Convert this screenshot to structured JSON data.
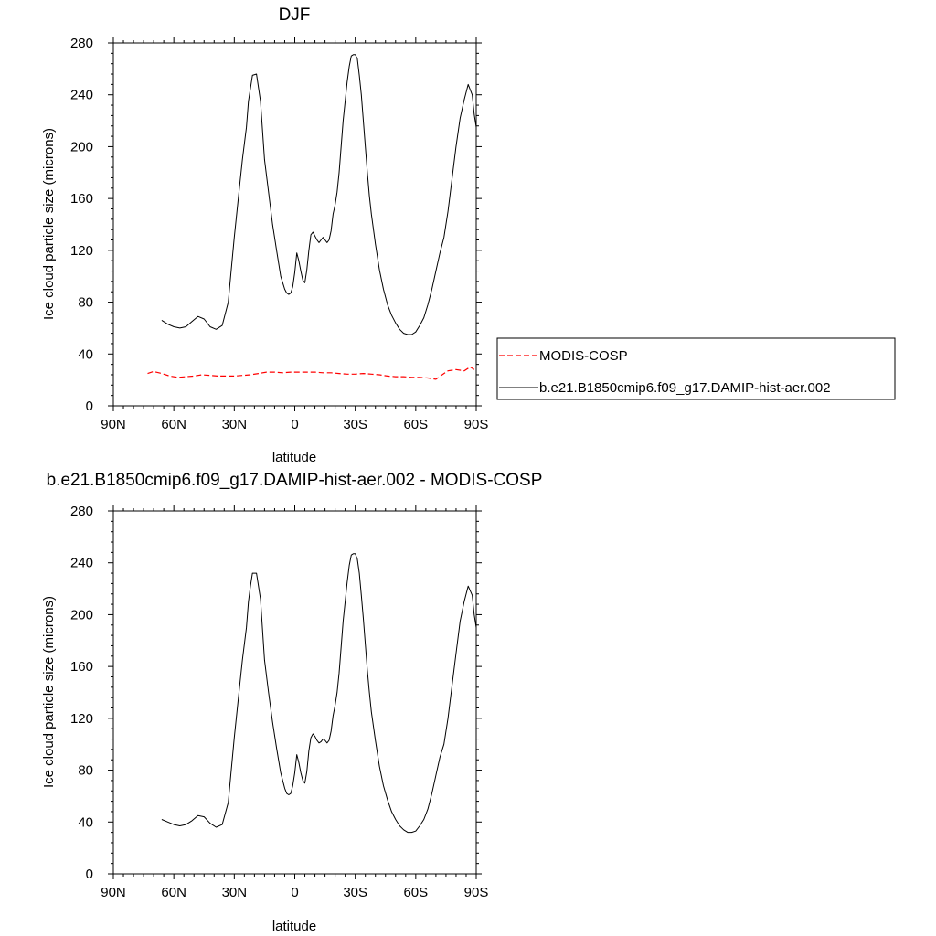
{
  "chart_data": [
    {
      "type": "line",
      "title": "DJF",
      "xlabel": "latitude",
      "ylabel": "Ice cloud particle size (microns)",
      "xlim": [
        -90,
        90
      ],
      "ylim": [
        0,
        280
      ],
      "xticks": [
        -90,
        -60,
        -30,
        0,
        30,
        60,
        90
      ],
      "xticklabels": [
        "90N",
        "60N",
        "30N",
        "0",
        "30S",
        "60S",
        "90S"
      ],
      "yticks": [
        0,
        40,
        80,
        120,
        160,
        200,
        240,
        280
      ],
      "yticklabels": [
        "0",
        "40",
        "80",
        "120",
        "160",
        "200",
        "240",
        "280"
      ],
      "legend": {
        "position": "right",
        "entries": [
          {
            "label": "MODIS-COSP",
            "color": "#ff0000",
            "dash": "dashed"
          },
          {
            "label": "b.e21.B1850cmip6.f09_g17.DAMIP-hist-aer.002",
            "color": "#000000",
            "dash": "solid"
          }
        ]
      },
      "series": [
        {
          "name": "MODIS-COSP",
          "color": "#ff0000",
          "dash": "dashed",
          "x": [
            -73,
            -70,
            -66,
            -62,
            -58,
            -54,
            -50,
            -46,
            -42,
            -38,
            -34,
            -30,
            -26,
            -22,
            -18,
            -14,
            -10,
            -6,
            -2,
            2,
            6,
            10,
            14,
            18,
            22,
            26,
            30,
            34,
            38,
            42,
            46,
            50,
            54,
            58,
            62,
            66,
            70,
            74,
            76,
            80,
            84,
            87,
            89
          ],
          "y": [
            25,
            26.5,
            25,
            23,
            22,
            22.5,
            23,
            24,
            23.5,
            23,
            23,
            23,
            23.5,
            24,
            25,
            26,
            26,
            25.5,
            26,
            26,
            26,
            26,
            25.5,
            25.5,
            25,
            24.5,
            24.5,
            25,
            24.5,
            24,
            23,
            22.5,
            22.5,
            22,
            22,
            21.5,
            20.5,
            25,
            27,
            28,
            27,
            30,
            28
          ]
        },
        {
          "name": "b.e21.B1850cmip6.f09_g17.DAMIP-hist-aer.002",
          "color": "#000000",
          "dash": "solid",
          "x": [
            -66,
            -63,
            -60,
            -57,
            -54,
            -51,
            -48,
            -45,
            -42,
            -39,
            -36,
            -33,
            -30,
            -28,
            -26,
            -24,
            -23,
            -22,
            -21,
            -19,
            -17,
            -15,
            -13,
            -11,
            -9,
            -7,
            -5,
            -4,
            -3,
            -2,
            -1,
            0,
            1,
            2,
            3,
            4,
            5,
            6,
            7,
            8,
            9,
            10,
            11,
            12,
            13,
            14,
            15,
            16,
            17,
            18,
            19,
            20,
            21,
            22,
            23,
            24,
            25,
            26,
            27,
            28,
            29,
            30,
            31,
            32,
            33,
            34,
            35,
            36,
            37,
            38,
            40,
            42,
            44,
            46,
            48,
            50,
            52,
            54,
            56,
            58,
            60,
            62,
            64,
            66,
            68,
            70,
            72,
            74,
            76,
            78,
            80,
            82,
            84,
            86,
            88,
            89,
            90
          ],
          "y": [
            66,
            63,
            61,
            60,
            61,
            65,
            69,
            67,
            61,
            59,
            62,
            80,
            130,
            160,
            190,
            215,
            235,
            245,
            255,
            256,
            235,
            190,
            165,
            140,
            120,
            100,
            90,
            87,
            86,
            87,
            92,
            103,
            118,
            112,
            104,
            97,
            95,
            105,
            120,
            132,
            134,
            131,
            128,
            126,
            128,
            130,
            128,
            126,
            128,
            135,
            148,
            155,
            165,
            180,
            200,
            220,
            235,
            250,
            262,
            270,
            271,
            271,
            268,
            255,
            240,
            220,
            200,
            180,
            162,
            148,
            125,
            105,
            90,
            78,
            70,
            64,
            59,
            56,
            55,
            55,
            57,
            62,
            68,
            78,
            90,
            104,
            118,
            130,
            150,
            175,
            200,
            222,
            236,
            248,
            240,
            225,
            215
          ]
        }
      ]
    },
    {
      "type": "line",
      "title": "b.e21.B1850cmip6.f09_g17.DAMIP-hist-aer.002 - MODIS-COSP",
      "xlabel": "latitude",
      "ylabel": "Ice cloud particle size (microns)",
      "xlim": [
        -90,
        90
      ],
      "ylim": [
        0,
        280
      ],
      "xticks": [
        -90,
        -60,
        -30,
        0,
        30,
        60,
        90
      ],
      "xticklabels": [
        "90N",
        "60N",
        "30N",
        "0",
        "30S",
        "60S",
        "90S"
      ],
      "yticks": [
        0,
        40,
        80,
        120,
        160,
        200,
        240,
        280
      ],
      "yticklabels": [
        "0",
        "40",
        "80",
        "120",
        "160",
        "200",
        "240",
        "280"
      ],
      "series": [
        {
          "color": "#000000",
          "dash": "solid",
          "x": [
            -66,
            -63,
            -60,
            -57,
            -54,
            -51,
            -48,
            -45,
            -42,
            -39,
            -36,
            -33,
            -30,
            -28,
            -26,
            -24,
            -23,
            -22,
            -21,
            -19,
            -17,
            -15,
            -13,
            -11,
            -9,
            -7,
            -5,
            -4,
            -3,
            -2,
            -1,
            0,
            1,
            2,
            3,
            4,
            5,
            6,
            7,
            8,
            9,
            10,
            11,
            12,
            13,
            14,
            15,
            16,
            17,
            18,
            19,
            20,
            21,
            22,
            23,
            24,
            25,
            26,
            27,
            28,
            29,
            30,
            31,
            32,
            33,
            34,
            35,
            36,
            37,
            38,
            40,
            42,
            44,
            46,
            48,
            50,
            52,
            54,
            56,
            58,
            60,
            62,
            64,
            66,
            68,
            70,
            72,
            74,
            76,
            78,
            80,
            82,
            84,
            86,
            88,
            89,
            90
          ],
          "y": [
            42,
            40,
            38,
            37,
            38,
            41,
            45,
            44,
            39,
            36,
            38,
            55,
            105,
            135,
            165,
            190,
            210,
            222,
            232,
            232,
            212,
            165,
            140,
            117,
            97,
            78,
            66,
            62,
            61,
            62,
            68,
            78,
            92,
            86,
            78,
            72,
            70,
            79,
            95,
            105,
            108,
            106,
            103,
            101,
            102,
            104,
            103,
            101,
            103,
            110,
            122,
            130,
            140,
            155,
            175,
            195,
            210,
            225,
            238,
            246,
            247,
            247,
            243,
            232,
            215,
            197,
            177,
            157,
            140,
            125,
            103,
            83,
            68,
            57,
            48,
            42,
            37,
            34,
            32,
            32,
            33,
            37,
            42,
            50,
            62,
            76,
            90,
            100,
            120,
            145,
            170,
            195,
            210,
            222,
            215,
            200,
            190
          ]
        }
      ]
    }
  ]
}
